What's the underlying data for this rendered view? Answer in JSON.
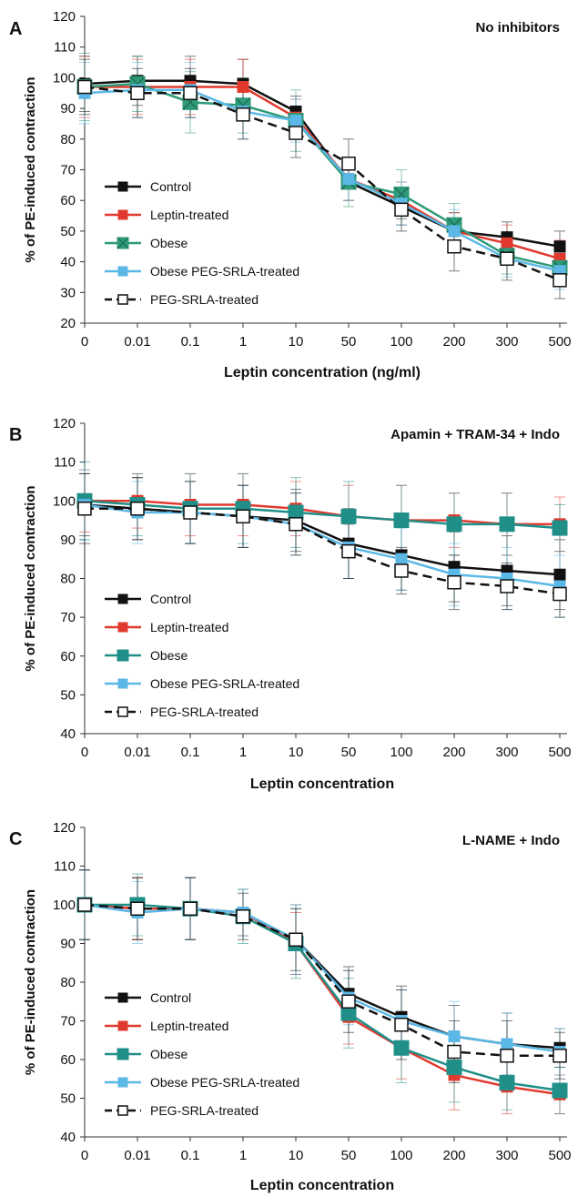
{
  "chart_data": [
    {
      "type": "line",
      "panel_label": "A",
      "title": "No inhibitors",
      "xlabel": "Leptin concentration (ng/ml)",
      "ylabel": "% of PE-induced contraction",
      "categories": [
        "0",
        "0.01",
        "0.1",
        "1",
        "10",
        "50",
        "100",
        "200",
        "300",
        "500"
      ],
      "ylim": [
        20,
        120
      ],
      "yticks": [
        20,
        30,
        40,
        50,
        60,
        70,
        80,
        90,
        100,
        110,
        120
      ],
      "legend_position": "lower-left",
      "series": [
        {
          "name": "Control",
          "color": "#111111",
          "marker": "square-filled",
          "dash": "solid",
          "values": [
            98,
            99,
            99,
            98,
            89,
            66,
            58,
            50,
            48,
            45
          ],
          "errors": [
            9,
            8,
            8,
            8,
            5,
            6,
            6,
            6,
            5,
            5
          ]
        },
        {
          "name": "Leptin-treated",
          "color": "#e03a2f",
          "marker": "square-filled",
          "dash": "solid",
          "values": [
            97,
            97,
            97,
            97,
            87,
            67,
            60,
            50,
            46,
            41
          ],
          "errors": [
            10,
            9,
            9,
            9,
            6,
            7,
            6,
            6,
            6,
            6
          ]
        },
        {
          "name": "Obese",
          "color": "#2e9a78",
          "marker": "square-x",
          "dash": "solid",
          "values": [
            97,
            98,
            92,
            91,
            86,
            66,
            62,
            52,
            42,
            38
          ],
          "errors": [
            11,
            9,
            10,
            9,
            10,
            8,
            8,
            7,
            6,
            6
          ]
        },
        {
          "name": "Obese PEG-SRLA-treated",
          "color": "#5bb8e6",
          "marker": "square-filled",
          "dash": "solid",
          "values": [
            95,
            96,
            96,
            89,
            86,
            67,
            59,
            50,
            41,
            37
          ],
          "errors": [
            10,
            9,
            9,
            9,
            7,
            7,
            7,
            7,
            6,
            6
          ]
        },
        {
          "name": "PEG-SRLA-treated",
          "color": "#111111",
          "marker": "square-open",
          "dash": "dashed",
          "values": [
            97,
            95,
            95,
            88,
            82,
            72,
            57,
            45,
            41,
            34
          ],
          "errors": [
            9,
            8,
            8,
            8,
            8,
            8,
            7,
            8,
            7,
            6
          ]
        }
      ]
    },
    {
      "type": "line",
      "panel_label": "B",
      "title": "Apamin + TRAM-34 + Indo",
      "xlabel": "Leptin concentration",
      "ylabel": "% of PE-induced contraction",
      "categories": [
        "0",
        "0.01",
        "0.1",
        "1",
        "10",
        "50",
        "100",
        "200",
        "300",
        "500"
      ],
      "ylim": [
        40,
        120
      ],
      "yticks": [
        40,
        50,
        60,
        70,
        80,
        90,
        100,
        110,
        120
      ],
      "legend_position": "lower-left",
      "series": [
        {
          "name": "Control",
          "color": "#111111",
          "marker": "square-filled",
          "dash": "solid",
          "values": [
            99,
            98,
            97,
            96,
            95,
            89,
            86,
            83,
            82,
            81
          ],
          "errors": [
            8,
            8,
            8,
            8,
            8,
            9,
            9,
            9,
            9,
            9
          ]
        },
        {
          "name": "Leptin-treated",
          "color": "#e03a2f",
          "marker": "square-filled",
          "dash": "solid",
          "values": [
            100,
            100,
            99,
            99,
            98,
            96,
            95,
            95,
            94,
            94
          ],
          "errors": [
            8,
            7,
            8,
            8,
            7,
            8,
            9,
            7,
            8,
            7
          ]
        },
        {
          "name": "Obese",
          "color": "#1f8f88",
          "marker": "square-filled-large",
          "dash": "solid",
          "values": [
            100,
            99,
            98,
            98,
            97,
            96,
            95,
            94,
            94,
            93
          ],
          "errors": [
            10,
            8,
            9,
            9,
            9,
            9,
            9,
            8,
            8,
            6
          ]
        },
        {
          "name": "Obese PEG-SRLA-treated",
          "color": "#5bb8e6",
          "marker": "square-filled",
          "dash": "solid",
          "values": [
            99,
            97,
            97,
            96,
            94,
            88,
            85,
            81,
            80,
            78
          ],
          "errors": [
            9,
            8,
            8,
            8,
            8,
            8,
            8,
            8,
            8,
            8
          ]
        },
        {
          "name": "PEG-SRLA-treated",
          "color": "#111111",
          "marker": "square-open",
          "dash": "dashed",
          "values": [
            98,
            98,
            97,
            96,
            94,
            87,
            82,
            79,
            78,
            76
          ],
          "errors": [
            9,
            8,
            8,
            8,
            8,
            7,
            6,
            7,
            6,
            6
          ]
        }
      ]
    },
    {
      "type": "line",
      "panel_label": "C",
      "title": "L-NAME + Indo",
      "xlabel": "Leptin concentration",
      "ylabel": "% of PE-induced contraction",
      "categories": [
        "0",
        "0.01",
        "0.1",
        "1",
        "10",
        "50",
        "100",
        "200",
        "300",
        "500"
      ],
      "ylim": [
        40,
        120
      ],
      "yticks": [
        40,
        50,
        60,
        70,
        80,
        90,
        100,
        110,
        120
      ],
      "legend_position": "lower-left",
      "series": [
        {
          "name": "Control",
          "color": "#111111",
          "marker": "square-filled",
          "dash": "solid",
          "values": [
            100,
            99,
            99,
            98,
            91,
            77,
            71,
            66,
            64,
            63
          ],
          "errors": [
            9,
            8,
            8,
            6,
            9,
            7,
            8,
            8,
            8,
            5
          ]
        },
        {
          "name": "Leptin-treated",
          "color": "#e03a2f",
          "marker": "square-filled",
          "dash": "solid",
          "values": [
            100,
            99,
            99,
            98,
            90,
            71,
            63,
            56,
            53,
            51
          ],
          "errors": [
            9,
            8,
            8,
            6,
            8,
            7,
            8,
            9,
            7,
            5
          ]
        },
        {
          "name": "Obese",
          "color": "#1f8f88",
          "marker": "square-filled-large",
          "dash": "solid",
          "values": [
            100,
            100,
            99,
            97,
            90,
            72,
            63,
            58,
            54,
            52
          ],
          "errors": [
            9,
            8,
            8,
            7,
            9,
            9,
            9,
            9,
            7,
            6
          ]
        },
        {
          "name": "Obese PEG-SRLA-treated",
          "color": "#5bb8e6",
          "marker": "square-filled",
          "dash": "solid",
          "values": [
            100,
            98,
            99,
            98,
            91,
            76,
            70,
            66,
            64,
            62
          ],
          "errors": [
            9,
            8,
            8,
            6,
            9,
            7,
            8,
            9,
            8,
            6
          ]
        },
        {
          "name": "PEG-SRLA-treated",
          "color": "#111111",
          "marker": "square-open",
          "dash": "dashed",
          "values": [
            100,
            99,
            99,
            97,
            91,
            75,
            69,
            62,
            61,
            61
          ],
          "errors": [
            9,
            8,
            8,
            6,
            8,
            8,
            9,
            8,
            9,
            6
          ]
        }
      ]
    }
  ]
}
